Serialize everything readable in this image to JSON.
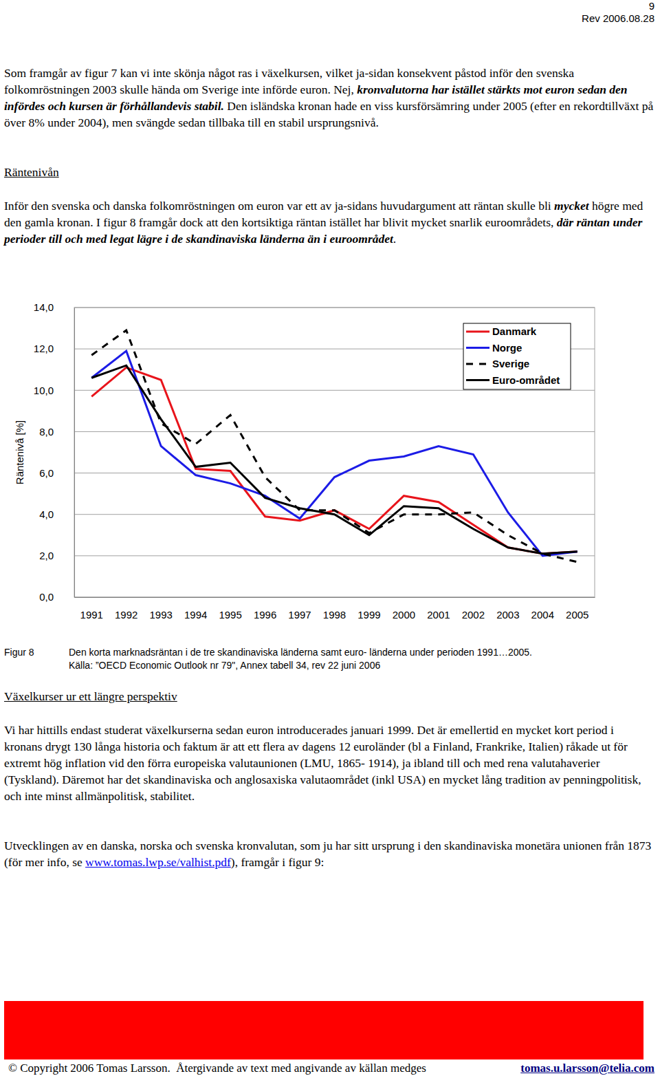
{
  "header": {
    "page_number": "9",
    "revision": "Rev 2006.08.28"
  },
  "paragraph_1": [
    {
      "text": "Som framgår av figur 7 kan vi inte skönja något ras i växelkursen, vilket ja-sidan konsekvent påstod inför den svenska folkomröstningen 2003 skulle hända om Sverige inte införde euron. Nej, ",
      "style": "normal"
    },
    {
      "text": "kronvalutorna har istället stärkts mot euron sedan den infördes och kursen är förhållandevis stabil.",
      "style": "bold-italic"
    },
    {
      "text": " Den isländska kronan hade en viss kursförsämring under 2005 (efter en rekordtillväxt på över 8% under 2004), men svängde sedan tillbaka till en stabil ursprungsnivå.",
      "style": "normal"
    }
  ],
  "heading_1": "Räntenivån",
  "paragraph_2": [
    {
      "text": "Inför den svenska och danska folkomröstningen om euron var ett av ja-sidans huvudargument att räntan skulle bli ",
      "style": "normal"
    },
    {
      "text": "mycket",
      "style": "bold-italic"
    },
    {
      "text": " högre med den gamla kronan. I figur 8 framgår dock att den kortsiktiga räntan istället har blivit mycket snarlik euroområdets, ",
      "style": "normal"
    },
    {
      "text": "där räntan under perioder till och med legat lägre i de skandinaviska länderna än i euroområdet",
      "style": "bold-italic"
    },
    {
      "text": ".",
      "style": "normal"
    }
  ],
  "chart_data": {
    "type": "line",
    "y_label": "Räntenivå [%]",
    "categories": [
      "1991",
      "1992",
      "1993",
      "1994",
      "1995",
      "1996",
      "1997",
      "1998",
      "1999",
      "2000",
      "2001",
      "2002",
      "2003",
      "2004",
      "2005"
    ],
    "series": [
      {
        "name": "Danmark",
        "color": "#e8141b",
        "line_style": "solid",
        "values": [
          9.7,
          11.1,
          10.5,
          6.2,
          6.1,
          3.9,
          3.7,
          4.2,
          3.3,
          4.9,
          4.6,
          3.5,
          2.4,
          2.1,
          2.2
        ]
      },
      {
        "name": "Norge",
        "color": "#1c1ce6",
        "line_style": "solid",
        "values": [
          10.6,
          11.9,
          7.3,
          5.9,
          5.5,
          4.9,
          3.8,
          5.8,
          6.6,
          6.8,
          7.3,
          6.9,
          4.1,
          2.0,
          2.2
        ]
      },
      {
        "name": "Sverige",
        "color": "#000000",
        "line_style": "dashed",
        "values": [
          11.7,
          12.9,
          8.4,
          7.4,
          8.8,
          5.8,
          4.2,
          4.2,
          3.1,
          4.0,
          4.0,
          4.1,
          3.0,
          2.1,
          1.7
        ]
      },
      {
        "name": "Euro-området",
        "color": "#000000",
        "line_style": "solid",
        "values": [
          10.6,
          11.2,
          8.6,
          6.3,
          6.5,
          4.8,
          4.3,
          4.0,
          3.0,
          4.4,
          4.3,
          3.3,
          2.4,
          2.1,
          2.2
        ]
      }
    ],
    "ylim": [
      0,
      14
    ],
    "yticks": [
      {
        "value": 0,
        "label": "0,0"
      },
      {
        "value": 2,
        "label": "2,0"
      },
      {
        "value": 4,
        "label": "4,0"
      },
      {
        "value": 6,
        "label": "6,0"
      },
      {
        "value": 8,
        "label": "8,0"
      },
      {
        "value": 10,
        "label": "10,0"
      },
      {
        "value": 12,
        "label": "12,0"
      },
      {
        "value": 14,
        "label": "14,0"
      }
    ],
    "grid": true,
    "legend": "upper right"
  },
  "figure_caption": {
    "label": "Figur 8",
    "lines": [
      "Den korta marknadsräntan i de tre skandinaviska länderna samt euro- länderna under perioden 1991…2005.",
      "Källa: ”OECD Economic Outlook nr 79\", Annex tabell 34, rev 22 juni 2006"
    ]
  },
  "heading_2": "Växelkurser ur ett längre perspektiv",
  "paragraph_3": [
    {
      "text": "Vi har hittills endast studerat växelkurserna sedan euron introducerades januari 1999. Det är emellertid en mycket kort period i kronans drygt 130 långa historia och faktum är att ett flera av dagens 12 euroländer (bl a Finland, Frankrike, Italien) råkade ut för extremt hög inflation vid den förra europeiska valutaunionen (LMU, 1865- 1914), ja ibland till och med rena valutahaverier (Tyskland). Däremot har det skandinaviska och anglosaxiska valutaområdet (inkl USA) en mycket lång tradition av penningpolitisk, och inte minst allmänpolitisk, stabilitet.",
      "style": "normal"
    }
  ],
  "paragraph_4": [
    {
      "text": "Utvecklingen av en danska, norska och svenska kronvalutan, som ju har sitt ursprung i den skandinaviska monetära unionen från 1873 (för mer info, se ",
      "style": "normal"
    },
    {
      "text": "www.tomas.lwp.se/valhist.pdf",
      "style": "link"
    },
    {
      "text": "), framgår i figur 9:",
      "style": "normal"
    }
  ],
  "footer": {
    "copyright": "© Copyright 2006 Tomas Larsson.  Återgivande av text med angivande av källan medges",
    "email": "tomas.u.larsson@telia.com"
  }
}
